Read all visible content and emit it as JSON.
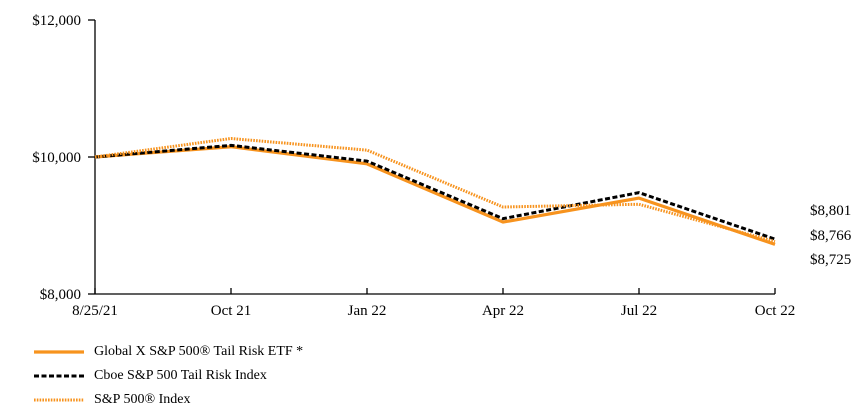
{
  "chart_data": {
    "type": "line",
    "x": [
      "8/25/21",
      "Oct 21",
      "Jan 22",
      "Apr 22",
      "Jul 22",
      "Oct 22"
    ],
    "yticks": [
      "$12,000",
      "$10,000",
      "$8,000"
    ],
    "ylim": [
      8000,
      12000
    ],
    "grid": false,
    "legend_position": "bottom-left",
    "series": [
      {
        "name": "Global X S&P 500® Tail Risk ETF *",
        "color": "#f7931e",
        "style": "solid",
        "values": [
          10000,
          10150,
          9900,
          9050,
          9400,
          8725
        ]
      },
      {
        "name": "Cboe S&P 500 Tail Risk Index",
        "color": "#000000",
        "style": "dashed",
        "values": [
          10000,
          10170,
          9940,
          9100,
          9480,
          8801
        ]
      },
      {
        "name": "S&P 500® Index",
        "color": "#f7931e",
        "style": "dotted",
        "values": [
          10000,
          10270,
          10100,
          9270,
          9310,
          8766
        ]
      }
    ],
    "end_labels": [
      "$8,801",
      "$8,766",
      "$8,725"
    ]
  },
  "colors": {
    "accent": "#f7931e",
    "axis": "#000000"
  }
}
